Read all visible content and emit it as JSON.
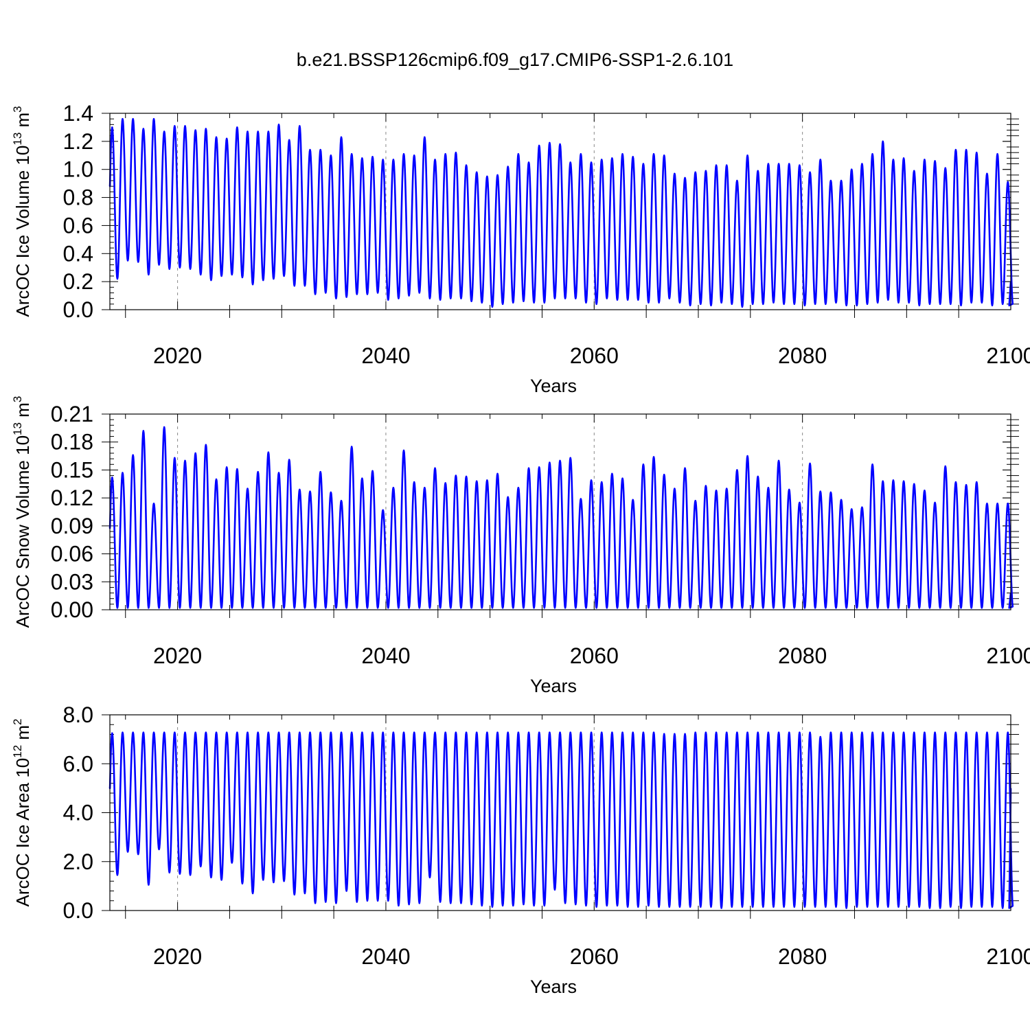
{
  "title": "b.e21.BSSP126cmip6.f09_g17.CMIP6-SSP1-2.6.101",
  "chart_data": [
    {
      "type": "line",
      "ylabel_main": "ArcOC Ice Volume 10",
      "ylabel_exp": "13",
      "ylabel_unit": " m",
      "ylabel_pow": "3",
      "xlabel": "Years",
      "xlim": [
        2013.5,
        2100
      ],
      "ylim": [
        0,
        1.4
      ],
      "xticks": [
        2020,
        2040,
        2060,
        2080,
        2100
      ],
      "xtick_labels": [
        "2020",
        "2040",
        "2060",
        "2080",
        "2100"
      ],
      "yticks": [
        0,
        0.2,
        0.4,
        0.6,
        0.8,
        1.0,
        1.2,
        1.4
      ],
      "ytick_labels": [
        "0.0",
        "0.2",
        "0.4",
        "0.6",
        "0.8",
        "1.0",
        "1.2",
        "1.4"
      ],
      "grid_x": [
        2020,
        2040,
        2060,
        2080
      ],
      "color": "#0000ff",
      "start_year": 2014,
      "max": [
        1.3,
        1.36,
        1.36,
        1.29,
        1.36,
        1.27,
        1.31,
        1.31,
        1.28,
        1.29,
        1.23,
        1.22,
        1.3,
        1.27,
        1.27,
        1.27,
        1.32,
        1.21,
        1.31,
        1.14,
        1.14,
        1.1,
        1.23,
        1.11,
        1.08,
        1.09,
        1.07,
        1.07,
        1.11,
        1.1,
        1.23,
        1.07,
        1.11,
        1.12,
        1.03,
        0.98,
        0.95,
        0.96,
        1.02,
        1.11,
        1.05,
        1.17,
        1.19,
        1.18,
        1.05,
        1.11,
        1.05,
        1.07,
        1.08,
        1.11,
        1.09,
        1.04,
        1.11,
        1.1,
        0.97,
        0.94,
        0.98,
        0.99,
        1.03,
        1.03,
        0.92,
        1.1,
        0.99,
        1.04,
        1.04,
        1.04,
        1.03,
        0.98,
        1.07,
        0.92,
        0.92,
        1.0,
        1.04,
        1.11,
        1.2,
        1.07,
        1.08,
        0.99,
        1.07,
        1.06,
        1.01,
        1.14,
        1.14,
        1.12,
        0.97,
        1.11,
        0.91
      ],
      "min": [
        0.22,
        0.35,
        0.34,
        0.25,
        0.32,
        0.29,
        0.3,
        0.29,
        0.25,
        0.21,
        0.24,
        0.25,
        0.23,
        0.18,
        0.21,
        0.22,
        0.24,
        0.17,
        0.17,
        0.11,
        0.12,
        0.08,
        0.09,
        0.11,
        0.11,
        0.12,
        0.07,
        0.08,
        0.1,
        0.12,
        0.08,
        0.07,
        0.08,
        0.08,
        0.06,
        0.05,
        0.02,
        0.04,
        0.05,
        0.06,
        0.05,
        0.05,
        0.08,
        0.08,
        0.08,
        0.05,
        0.04,
        0.08,
        0.07,
        0.07,
        0.07,
        0.05,
        0.05,
        0.08,
        0.05,
        0.03,
        0.04,
        0.03,
        0.05,
        0.04,
        0.02,
        0.04,
        0.04,
        0.05,
        0.04,
        0.04,
        0.03,
        0.04,
        0.04,
        0.05,
        0.03,
        0.03,
        0.04,
        0.05,
        0.07,
        0.05,
        0.05,
        0.03,
        0.04,
        0.04,
        0.04,
        0.03,
        0.05,
        0.05,
        0.03,
        0.04,
        0.03
      ],
      "end_value": 0.2
    },
    {
      "type": "line",
      "ylabel_main": "ArcOC Snow Volume 10",
      "ylabel_exp": "13",
      "ylabel_unit": " m",
      "ylabel_pow": "3",
      "xlabel": "Years",
      "xlim": [
        2013.5,
        2100
      ],
      "ylim": [
        0,
        0.21
      ],
      "xticks": [
        2020,
        2040,
        2060,
        2080,
        2100
      ],
      "xtick_labels": [
        "2020",
        "2040",
        "2060",
        "2080",
        "2100"
      ],
      "yticks": [
        0,
        0.03,
        0.06,
        0.09,
        0.12,
        0.15,
        0.18,
        0.21
      ],
      "ytick_labels": [
        "0.00",
        "0.03",
        "0.06",
        "0.09",
        "0.12",
        "0.15",
        "0.18",
        "0.21"
      ],
      "grid_x": [
        2020,
        2040,
        2060,
        2080
      ],
      "color": "#0000ff",
      "start_year": 2014,
      "max": [
        0.142,
        0.147,
        0.166,
        0.192,
        0.114,
        0.196,
        0.163,
        0.16,
        0.168,
        0.177,
        0.14,
        0.153,
        0.151,
        0.13,
        0.148,
        0.169,
        0.147,
        0.161,
        0.129,
        0.127,
        0.148,
        0.126,
        0.117,
        0.175,
        0.141,
        0.149,
        0.107,
        0.131,
        0.171,
        0.137,
        0.131,
        0.152,
        0.136,
        0.144,
        0.143,
        0.138,
        0.139,
        0.146,
        0.121,
        0.131,
        0.152,
        0.153,
        0.158,
        0.16,
        0.163,
        0.119,
        0.139,
        0.137,
        0.146,
        0.141,
        0.118,
        0.156,
        0.164,
        0.145,
        0.13,
        0.152,
        0.117,
        0.133,
        0.128,
        0.13,
        0.15,
        0.165,
        0.143,
        0.131,
        0.16,
        0.129,
        0.115,
        0.157,
        0.127,
        0.126,
        0.118,
        0.108,
        0.11,
        0.156,
        0.138,
        0.139,
        0.138,
        0.135,
        0.128,
        0.115,
        0.154,
        0.137,
        0.134,
        0.137,
        0.114,
        0.114,
        0.114
      ],
      "min": [
        0.002,
        0.002,
        0.002,
        0.002,
        0.002,
        0.002,
        0.002,
        0.002,
        0.002,
        0.002,
        0.002,
        0.002,
        0.002,
        0.002,
        0.002,
        0.002,
        0.002,
        0.002,
        0.002,
        0.002,
        0.002,
        0.002,
        0.002,
        0.002,
        0.002,
        0.002,
        0.002,
        0.002,
        0.002,
        0.002,
        0.002,
        0.002,
        0.002,
        0.002,
        0.002,
        0.002,
        0.002,
        0.002,
        0.002,
        0.002,
        0.002,
        0.002,
        0.002,
        0.002,
        0.002,
        0.002,
        0.002,
        0.002,
        0.002,
        0.002,
        0.002,
        0.002,
        0.002,
        0.002,
        0.002,
        0.002,
        0.002,
        0.002,
        0.002,
        0.002,
        0.002,
        0.002,
        0.002,
        0.002,
        0.002,
        0.002,
        0.002,
        0.002,
        0.002,
        0.002,
        0.002,
        0.002,
        0.002,
        0.002,
        0.002,
        0.002,
        0.002,
        0.002,
        0.002,
        0.002,
        0.002,
        0.002,
        0.002,
        0.002,
        0.002,
        0.002,
        0.002
      ],
      "end_value": 0.018
    },
    {
      "type": "line",
      "ylabel_main": "ArcOC Ice Area 10",
      "ylabel_exp": "12",
      "ylabel_unit": " m",
      "ylabel_pow": "2",
      "xlabel": "Years",
      "xlim": [
        2013.5,
        2100
      ],
      "ylim": [
        0,
        8
      ],
      "xticks": [
        2020,
        2040,
        2060,
        2080,
        2100
      ],
      "xtick_labels": [
        "2020",
        "2040",
        "2060",
        "2080",
        "2100"
      ],
      "yticks": [
        0,
        2,
        4,
        6,
        8
      ],
      "ytick_labels": [
        "0.0",
        "2.0",
        "4.0",
        "6.0",
        "8.0"
      ],
      "grid_x": [
        2020,
        2040,
        2060,
        2080
      ],
      "color": "#0000ff",
      "start_year": 2014,
      "max": [
        7.25,
        7.28,
        7.28,
        7.28,
        7.28,
        7.28,
        7.28,
        7.28,
        7.28,
        7.28,
        7.28,
        7.28,
        7.28,
        7.28,
        7.28,
        7.28,
        7.28,
        7.28,
        7.28,
        7.28,
        7.28,
        7.28,
        7.28,
        7.28,
        7.28,
        7.28,
        7.28,
        7.28,
        7.28,
        7.28,
        7.28,
        7.28,
        7.28,
        7.28,
        7.28,
        7.28,
        7.28,
        7.28,
        7.28,
        7.28,
        7.28,
        7.28,
        7.28,
        7.28,
        7.28,
        7.28,
        7.28,
        7.28,
        7.28,
        7.28,
        7.28,
        7.28,
        7.28,
        7.22,
        7.22,
        7.22,
        7.28,
        7.28,
        7.28,
        7.28,
        7.28,
        7.28,
        7.28,
        7.28,
        7.28,
        7.28,
        7.28,
        7.28,
        7.1,
        7.28,
        7.28,
        7.28,
        7.28,
        7.28,
        7.28,
        7.28,
        7.28,
        7.28,
        7.28,
        7.28,
        7.28,
        7.28,
        7.28,
        7.28,
        7.28,
        7.28,
        7.28
      ],
      "min": [
        1.45,
        2.4,
        2.3,
        1.05,
        2.5,
        1.55,
        1.5,
        1.45,
        1.8,
        1.35,
        1.25,
        1.95,
        1.1,
        0.7,
        1.25,
        1.15,
        1.2,
        0.65,
        0.7,
        0.3,
        0.35,
        0.3,
        0.8,
        0.35,
        0.4,
        0.4,
        0.4,
        0.2,
        0.25,
        0.3,
        1.35,
        0.35,
        0.3,
        0.3,
        0.25,
        0.2,
        0.15,
        0.2,
        0.2,
        0.25,
        0.2,
        0.2,
        0.85,
        0.3,
        0.25,
        0.2,
        0.15,
        0.2,
        0.2,
        0.15,
        0.15,
        0.2,
        0.15,
        0.15,
        0.15,
        0.15,
        0.15,
        0.15,
        0.1,
        0.15,
        0.15,
        0.15,
        0.15,
        0.15,
        0.15,
        0.15,
        0.15,
        0.15,
        0.15,
        0.15,
        0.1,
        0.15,
        0.15,
        0.15,
        0.15,
        0.15,
        0.15,
        0.15,
        0.1,
        0.1,
        0.15,
        0.1,
        0.15,
        0.15,
        0.15,
        0.1,
        0.1
      ],
      "end_value": 5.0
    }
  ]
}
